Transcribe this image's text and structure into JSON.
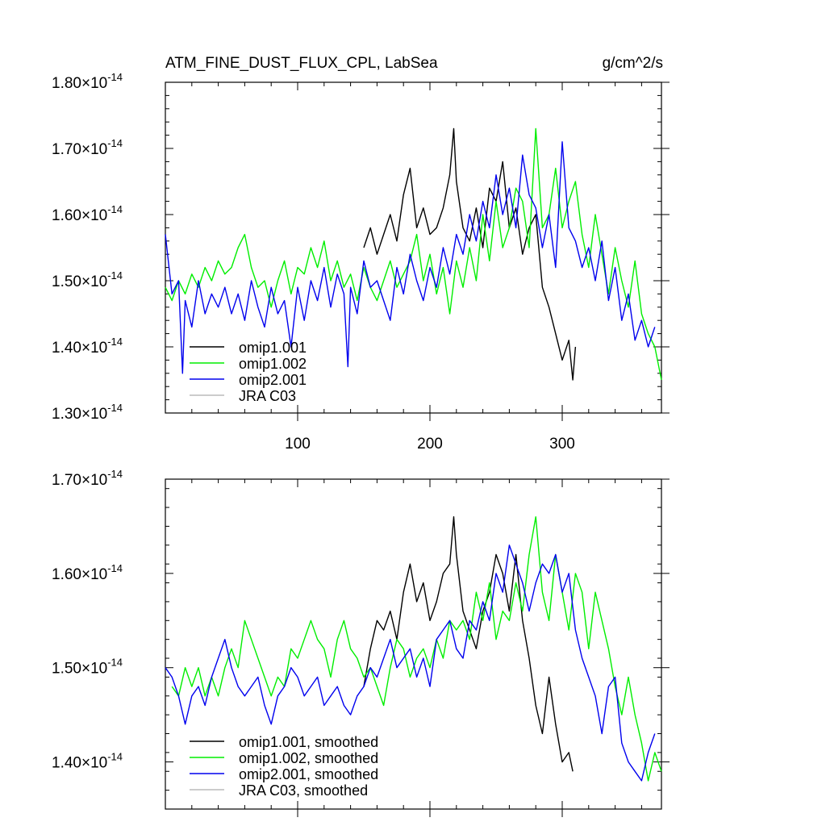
{
  "figure": {
    "title": "ATM_FINE_DUST_FLUX_CPL, LabSea",
    "units": "g/cm^2/s",
    "exponent": "-14"
  },
  "colors": {
    "omip1.001": "#000000",
    "omip1.002": "#00ee00",
    "omip2.001": "#0000ee",
    "JRA C03": "#bbbbbb"
  },
  "chart_data": [
    {
      "type": "line",
      "panel": "top",
      "title": "ATM_FINE_DUST_FLUX_CPL, LabSea",
      "units": "g/cm^2/s",
      "xlim": [
        0,
        375
      ],
      "ylim": [
        1.3,
        1.8
      ],
      "xticks": [
        100,
        200,
        300
      ],
      "xtick_labels": [
        "100",
        "200",
        "300"
      ],
      "yticks": [
        1.3,
        1.4,
        1.5,
        1.6,
        1.7,
        1.8
      ],
      "ytick_labels": [
        "1.30",
        "1.40",
        "1.50",
        "1.60",
        "1.70",
        "1.80"
      ],
      "legend_position": "bottom-left",
      "series": [
        {
          "name": "omip1.001",
          "x": [
            150,
            155,
            160,
            165,
            170,
            175,
            180,
            185,
            190,
            195,
            200,
            205,
            210,
            215,
            218,
            220,
            225,
            230,
            235,
            240,
            245,
            250,
            255,
            260,
            265,
            270,
            275,
            280,
            285,
            290,
            295,
            300,
            305,
            308,
            310
          ],
          "y": [
            1.55,
            1.58,
            1.54,
            1.57,
            1.6,
            1.56,
            1.63,
            1.67,
            1.58,
            1.61,
            1.57,
            1.58,
            1.61,
            1.66,
            1.73,
            1.65,
            1.58,
            1.56,
            1.61,
            1.55,
            1.64,
            1.62,
            1.68,
            1.58,
            1.61,
            1.54,
            1.58,
            1.6,
            1.49,
            1.46,
            1.42,
            1.38,
            1.41,
            1.35,
            1.4
          ]
        },
        {
          "name": "omip1.002",
          "x": [
            0,
            5,
            10,
            15,
            20,
            25,
            30,
            35,
            40,
            45,
            50,
            55,
            60,
            65,
            70,
            75,
            80,
            85,
            90,
            95,
            100,
            105,
            110,
            115,
            120,
            125,
            130,
            135,
            140,
            145,
            150,
            155,
            160,
            165,
            170,
            175,
            180,
            185,
            190,
            195,
            200,
            205,
            210,
            215,
            220,
            225,
            230,
            235,
            240,
            245,
            250,
            255,
            260,
            265,
            270,
            275,
            280,
            285,
            290,
            295,
            300,
            305,
            310,
            315,
            320,
            325,
            330,
            335,
            340,
            345,
            350,
            355,
            360,
            365,
            370,
            375
          ],
          "y": [
            1.49,
            1.47,
            1.5,
            1.48,
            1.51,
            1.49,
            1.52,
            1.5,
            1.53,
            1.51,
            1.52,
            1.55,
            1.57,
            1.52,
            1.49,
            1.5,
            1.46,
            1.5,
            1.53,
            1.48,
            1.52,
            1.51,
            1.55,
            1.52,
            1.56,
            1.5,
            1.53,
            1.49,
            1.51,
            1.47,
            1.52,
            1.49,
            1.47,
            1.5,
            1.53,
            1.49,
            1.51,
            1.53,
            1.57,
            1.5,
            1.54,
            1.48,
            1.52,
            1.45,
            1.53,
            1.49,
            1.55,
            1.5,
            1.6,
            1.53,
            1.62,
            1.55,
            1.58,
            1.64,
            1.62,
            1.55,
            1.73,
            1.58,
            1.6,
            1.67,
            1.58,
            1.62,
            1.65,
            1.57,
            1.52,
            1.6,
            1.54,
            1.48,
            1.55,
            1.5,
            1.46,
            1.53,
            1.45,
            1.42,
            1.4,
            1.35
          ]
        },
        {
          "name": "omip2.001",
          "x": [
            0,
            5,
            10,
            13,
            15,
            20,
            25,
            30,
            35,
            40,
            45,
            50,
            55,
            60,
            65,
            70,
            75,
            80,
            85,
            90,
            95,
            100,
            105,
            110,
            115,
            120,
            125,
            130,
            135,
            138,
            140,
            145,
            150,
            155,
            160,
            165,
            170,
            175,
            180,
            185,
            190,
            195,
            200,
            205,
            210,
            215,
            220,
            225,
            230,
            235,
            240,
            245,
            250,
            255,
            260,
            265,
            270,
            275,
            280,
            285,
            290,
            295,
            300,
            305,
            310,
            315,
            320,
            325,
            330,
            335,
            340,
            345,
            350,
            355,
            360,
            365,
            370
          ],
          "y": [
            1.57,
            1.48,
            1.5,
            1.36,
            1.47,
            1.43,
            1.5,
            1.45,
            1.48,
            1.46,
            1.49,
            1.45,
            1.48,
            1.44,
            1.5,
            1.46,
            1.43,
            1.49,
            1.45,
            1.47,
            1.4,
            1.49,
            1.44,
            1.5,
            1.47,
            1.52,
            1.46,
            1.51,
            1.48,
            1.37,
            1.49,
            1.45,
            1.53,
            1.49,
            1.5,
            1.47,
            1.44,
            1.52,
            1.48,
            1.54,
            1.5,
            1.47,
            1.52,
            1.49,
            1.55,
            1.51,
            1.57,
            1.54,
            1.6,
            1.56,
            1.62,
            1.58,
            1.66,
            1.6,
            1.64,
            1.58,
            1.69,
            1.63,
            1.61,
            1.55,
            1.6,
            1.52,
            1.71,
            1.58,
            1.56,
            1.52,
            1.55,
            1.5,
            1.56,
            1.47,
            1.52,
            1.44,
            1.48,
            1.41,
            1.44,
            1.4,
            1.43
          ]
        }
      ]
    },
    {
      "type": "line",
      "panel": "bottom",
      "xlim": [
        0,
        375
      ],
      "ylim": [
        1.35,
        1.7
      ],
      "xticks": [
        100,
        200,
        300
      ],
      "yticks": [
        1.4,
        1.5,
        1.6,
        1.7
      ],
      "ytick_labels": [
        "1.40",
        "1.50",
        "1.60",
        "1.70"
      ],
      "legend_position": "bottom-left",
      "series": [
        {
          "name": "omip1.001, smoothed",
          "x": [
            150,
            155,
            160,
            165,
            170,
            175,
            180,
            185,
            190,
            195,
            200,
            205,
            210,
            215,
            218,
            220,
            225,
            230,
            235,
            240,
            245,
            250,
            255,
            260,
            265,
            270,
            275,
            280,
            285,
            290,
            295,
            300,
            305,
            308
          ],
          "y": [
            1.48,
            1.52,
            1.55,
            1.54,
            1.56,
            1.53,
            1.58,
            1.61,
            1.57,
            1.59,
            1.55,
            1.57,
            1.6,
            1.61,
            1.66,
            1.62,
            1.56,
            1.54,
            1.52,
            1.56,
            1.58,
            1.62,
            1.6,
            1.56,
            1.62,
            1.55,
            1.51,
            1.46,
            1.43,
            1.49,
            1.44,
            1.4,
            1.41,
            1.39
          ]
        },
        {
          "name": "omip1.002, smoothed",
          "x": [
            5,
            10,
            15,
            20,
            25,
            30,
            35,
            40,
            45,
            50,
            55,
            60,
            65,
            70,
            75,
            80,
            85,
            90,
            95,
            100,
            105,
            110,
            115,
            120,
            125,
            130,
            135,
            140,
            145,
            150,
            155,
            160,
            165,
            170,
            175,
            180,
            185,
            190,
            195,
            200,
            205,
            210,
            215,
            220,
            225,
            230,
            235,
            240,
            245,
            250,
            255,
            260,
            265,
            270,
            275,
            280,
            285,
            290,
            295,
            300,
            305,
            310,
            315,
            320,
            325,
            330,
            335,
            340,
            345,
            350,
            355,
            360,
            365,
            370,
            375
          ],
          "y": [
            1.48,
            1.47,
            1.5,
            1.48,
            1.5,
            1.47,
            1.49,
            1.47,
            1.5,
            1.52,
            1.5,
            1.55,
            1.53,
            1.51,
            1.49,
            1.47,
            1.49,
            1.48,
            1.52,
            1.51,
            1.53,
            1.55,
            1.53,
            1.52,
            1.49,
            1.53,
            1.55,
            1.52,
            1.51,
            1.49,
            1.5,
            1.48,
            1.46,
            1.5,
            1.53,
            1.52,
            1.49,
            1.51,
            1.52,
            1.5,
            1.53,
            1.51,
            1.55,
            1.54,
            1.55,
            1.53,
            1.58,
            1.55,
            1.59,
            1.53,
            1.56,
            1.55,
            1.59,
            1.56,
            1.62,
            1.66,
            1.58,
            1.55,
            1.62,
            1.58,
            1.54,
            1.6,
            1.58,
            1.52,
            1.58,
            1.55,
            1.52,
            1.48,
            1.45,
            1.49,
            1.45,
            1.42,
            1.38,
            1.41,
            1.39
          ]
        },
        {
          "name": "omip2.001, smoothed",
          "x": [
            0,
            5,
            10,
            15,
            20,
            25,
            30,
            35,
            40,
            45,
            50,
            55,
            60,
            65,
            70,
            75,
            80,
            85,
            90,
            95,
            100,
            105,
            110,
            115,
            120,
            125,
            130,
            135,
            140,
            145,
            150,
            155,
            160,
            165,
            170,
            175,
            180,
            185,
            190,
            195,
            200,
            205,
            210,
            215,
            220,
            225,
            230,
            235,
            240,
            245,
            250,
            255,
            260,
            265,
            270,
            275,
            280,
            285,
            290,
            295,
            300,
            305,
            310,
            315,
            320,
            325,
            330,
            335,
            340,
            345,
            350,
            355,
            360,
            365,
            370
          ],
          "y": [
            1.5,
            1.49,
            1.47,
            1.44,
            1.47,
            1.48,
            1.46,
            1.49,
            1.51,
            1.53,
            1.5,
            1.48,
            1.47,
            1.48,
            1.49,
            1.46,
            1.44,
            1.47,
            1.48,
            1.5,
            1.49,
            1.47,
            1.48,
            1.49,
            1.46,
            1.47,
            1.48,
            1.46,
            1.45,
            1.47,
            1.48,
            1.5,
            1.49,
            1.51,
            1.53,
            1.5,
            1.51,
            1.52,
            1.49,
            1.51,
            1.48,
            1.53,
            1.54,
            1.55,
            1.52,
            1.51,
            1.55,
            1.54,
            1.57,
            1.55,
            1.6,
            1.58,
            1.63,
            1.61,
            1.59,
            1.56,
            1.59,
            1.61,
            1.6,
            1.62,
            1.58,
            1.6,
            1.54,
            1.51,
            1.49,
            1.47,
            1.43,
            1.48,
            1.49,
            1.42,
            1.4,
            1.39,
            1.38,
            1.41,
            1.43
          ]
        }
      ]
    }
  ],
  "legend_top": [
    "omip1.001",
    "omip1.002",
    "omip2.001",
    "JRA C03"
  ],
  "legend_bottom": [
    "omip1.001, smoothed",
    "omip1.002, smoothed",
    "omip2.001, smoothed",
    "JRA C03, smoothed"
  ]
}
